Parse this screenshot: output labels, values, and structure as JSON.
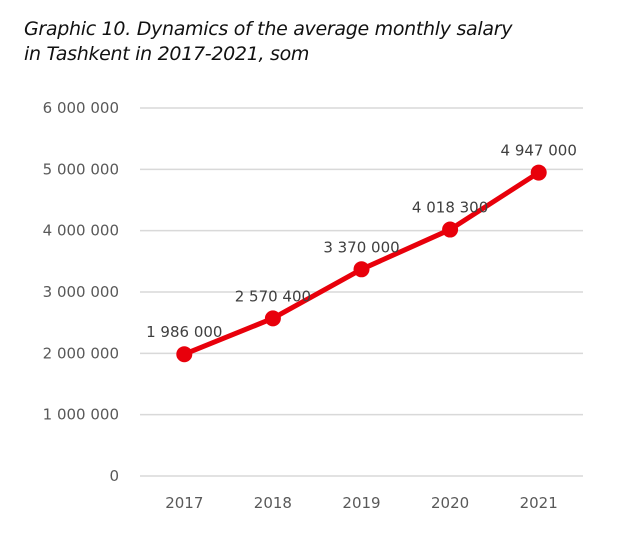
{
  "chart_data": {
    "type": "line",
    "title": "Graphic 10. Dynamics of the average monthly salary",
    "subtitle": "in Tashkent in 2017-2021, som",
    "xlabel": "",
    "ylabel": "",
    "categories": [
      "2017",
      "2018",
      "2019",
      "2020",
      "2021"
    ],
    "series": [
      {
        "name": "Average monthly salary",
        "values": [
          1986000,
          2570400,
          3370000,
          4018300,
          4947000
        ],
        "data_labels": [
          "1 986 000",
          "2 570 400",
          "3 370 000",
          "4 018 300",
          "4 947 000"
        ],
        "color": "#e8000b"
      }
    ],
    "ylim": [
      0,
      6000000
    ],
    "yticks": [
      0,
      1000000,
      2000000,
      3000000,
      4000000,
      5000000,
      6000000
    ],
    "ytick_labels": [
      "0",
      "1 000 000",
      "2 000 000",
      "3 000 000",
      "4 000 000",
      "5 000 000",
      "6 000 000"
    ],
    "grid": true,
    "legend": "none",
    "gridline_color": "#d9d9d9"
  }
}
